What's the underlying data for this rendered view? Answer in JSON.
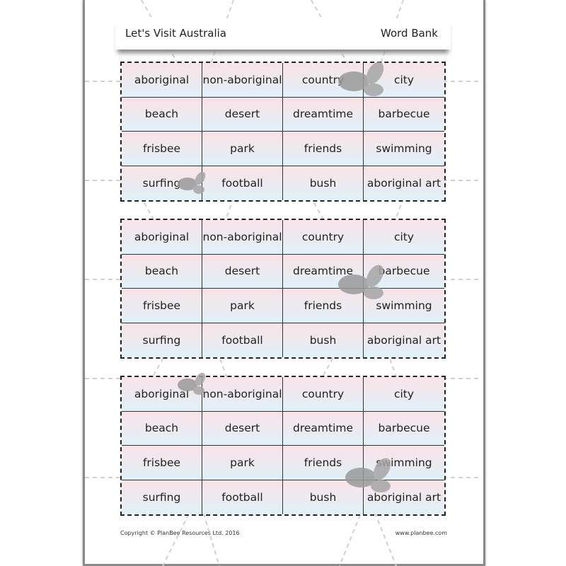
{
  "header": {
    "title": "Let's Visit Australia",
    "subtitle": "Word Bank"
  },
  "tables": [
    {
      "words": [
        "aboriginal",
        "non-aboriginal",
        "country",
        "city",
        "beach",
        "desert",
        "dreamtime",
        "barbecue",
        "frisbee",
        "park",
        "friends",
        "swimming",
        "surfing",
        "football",
        "bush",
        "aboriginal art"
      ]
    },
    {
      "words": [
        "aboriginal",
        "non-aboriginal",
        "country",
        "city",
        "beach",
        "desert",
        "dreamtime",
        "barbecue",
        "frisbee",
        "park",
        "friends",
        "swimming",
        "surfing",
        "football",
        "bush",
        "aboriginal art"
      ]
    },
    {
      "words": [
        "aboriginal",
        "non-aboriginal",
        "country",
        "city",
        "beach",
        "desert",
        "dreamtime",
        "barbecue",
        "frisbee",
        "park",
        "friends",
        "swimming",
        "surfing",
        "football",
        "bush",
        "aboriginal art"
      ]
    }
  ],
  "footer": {
    "copyright": "Copyright © PlanBee Resources Ltd. 2016",
    "website": "www.planbee.com"
  },
  "colors": {
    "cell_top": "#f9e3e6",
    "cell_bottom": "#e0f1f9",
    "bee": "#9a9a9a"
  }
}
